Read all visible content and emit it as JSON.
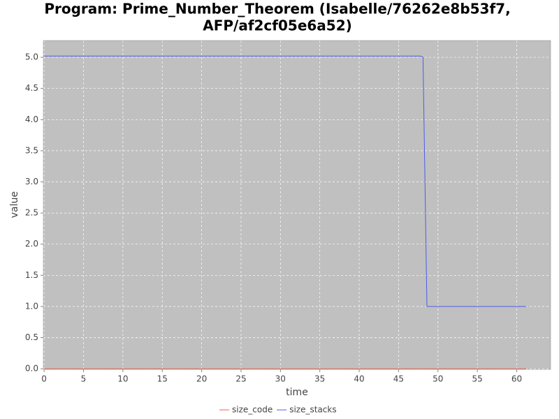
{
  "chart_data": {
    "type": "line",
    "title": [
      "Program: Prime_Number_Theorem (Isabelle/76262e8b53f7,",
      "AFP/af2cf05e6a52)"
    ],
    "x_label": "time",
    "y_label": "value",
    "series": [
      {
        "name": "size_code",
        "color": "#e8614d",
        "x": [
          0,
          61.2
        ],
        "values": [
          0,
          0
        ]
      },
      {
        "name": "size_stacks",
        "color": "#4d5ce8",
        "x": [
          0,
          47.8,
          48.1,
          48.6,
          61.2
        ],
        "values": [
          5.02,
          5.02,
          5.0,
          1.0,
          1.0
        ]
      }
    ],
    "xlim": [
      -0.1,
      64.3
    ],
    "ylim": [
      -0.01,
      5.27
    ],
    "xticks": [
      0,
      5,
      10,
      15,
      20,
      25,
      30,
      35,
      40,
      45,
      50,
      55,
      60
    ],
    "yticks": [
      {
        "value": 0,
        "label": "0.0"
      },
      {
        "value": 0.5,
        "label": "0.5"
      },
      {
        "value": 1,
        "label": "1.0"
      },
      {
        "value": 1.5,
        "label": "1.5"
      },
      {
        "value": 2,
        "label": "2.0"
      },
      {
        "value": 2.5,
        "label": "2.5"
      },
      {
        "value": 3,
        "label": "3.0"
      },
      {
        "value": 3.5,
        "label": "3.5"
      },
      {
        "value": 4,
        "label": "4.0"
      },
      {
        "value": 4.5,
        "label": "4.5"
      },
      {
        "value": 5,
        "label": "5.0"
      }
    ],
    "grid": true,
    "plot_background": "#c0c0c0",
    "legend": "bottom"
  }
}
